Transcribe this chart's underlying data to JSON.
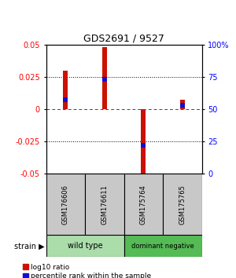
{
  "title": "GDS2691 / 9527",
  "samples": [
    "GSM176606",
    "GSM176611",
    "GSM175764",
    "GSM175765"
  ],
  "log10_ratio": [
    0.03,
    0.048,
    -0.055,
    0.007
  ],
  "percentile_rank": [
    0.57,
    0.73,
    0.22,
    0.53
  ],
  "ylim": [
    -0.05,
    0.05
  ],
  "y2lim": [
    0,
    100
  ],
  "yticks": [
    -0.05,
    -0.025,
    0,
    0.025,
    0.05
  ],
  "ytick_labels": [
    "-0.05",
    "-0.025",
    "0",
    "0.025",
    "0.05"
  ],
  "y2ticks": [
    0,
    25,
    50,
    75,
    100
  ],
  "y2tick_labels": [
    "0",
    "25",
    "50",
    "75",
    "100%"
  ],
  "bar_color": "#CC1100",
  "dot_color": "#1111CC",
  "hline_color": "#CC1100",
  "grid_dotted_color": "#555555",
  "bar_width": 0.12,
  "dot_size": 18,
  "label_log10": "log10 ratio",
  "label_percentile": "percentile rank within the sample",
  "group_label": "strain",
  "sample_box_color": "#C8C8C8",
  "group_colors": [
    "#AAEAAA",
    "#44CC44"
  ],
  "group_names": [
    "wild type",
    "dominant negative"
  ],
  "group_ranges": [
    [
      0,
      2
    ],
    [
      2,
      4
    ]
  ],
  "wildtype_color": "#AADDAA",
  "dominant_color": "#55BB55"
}
